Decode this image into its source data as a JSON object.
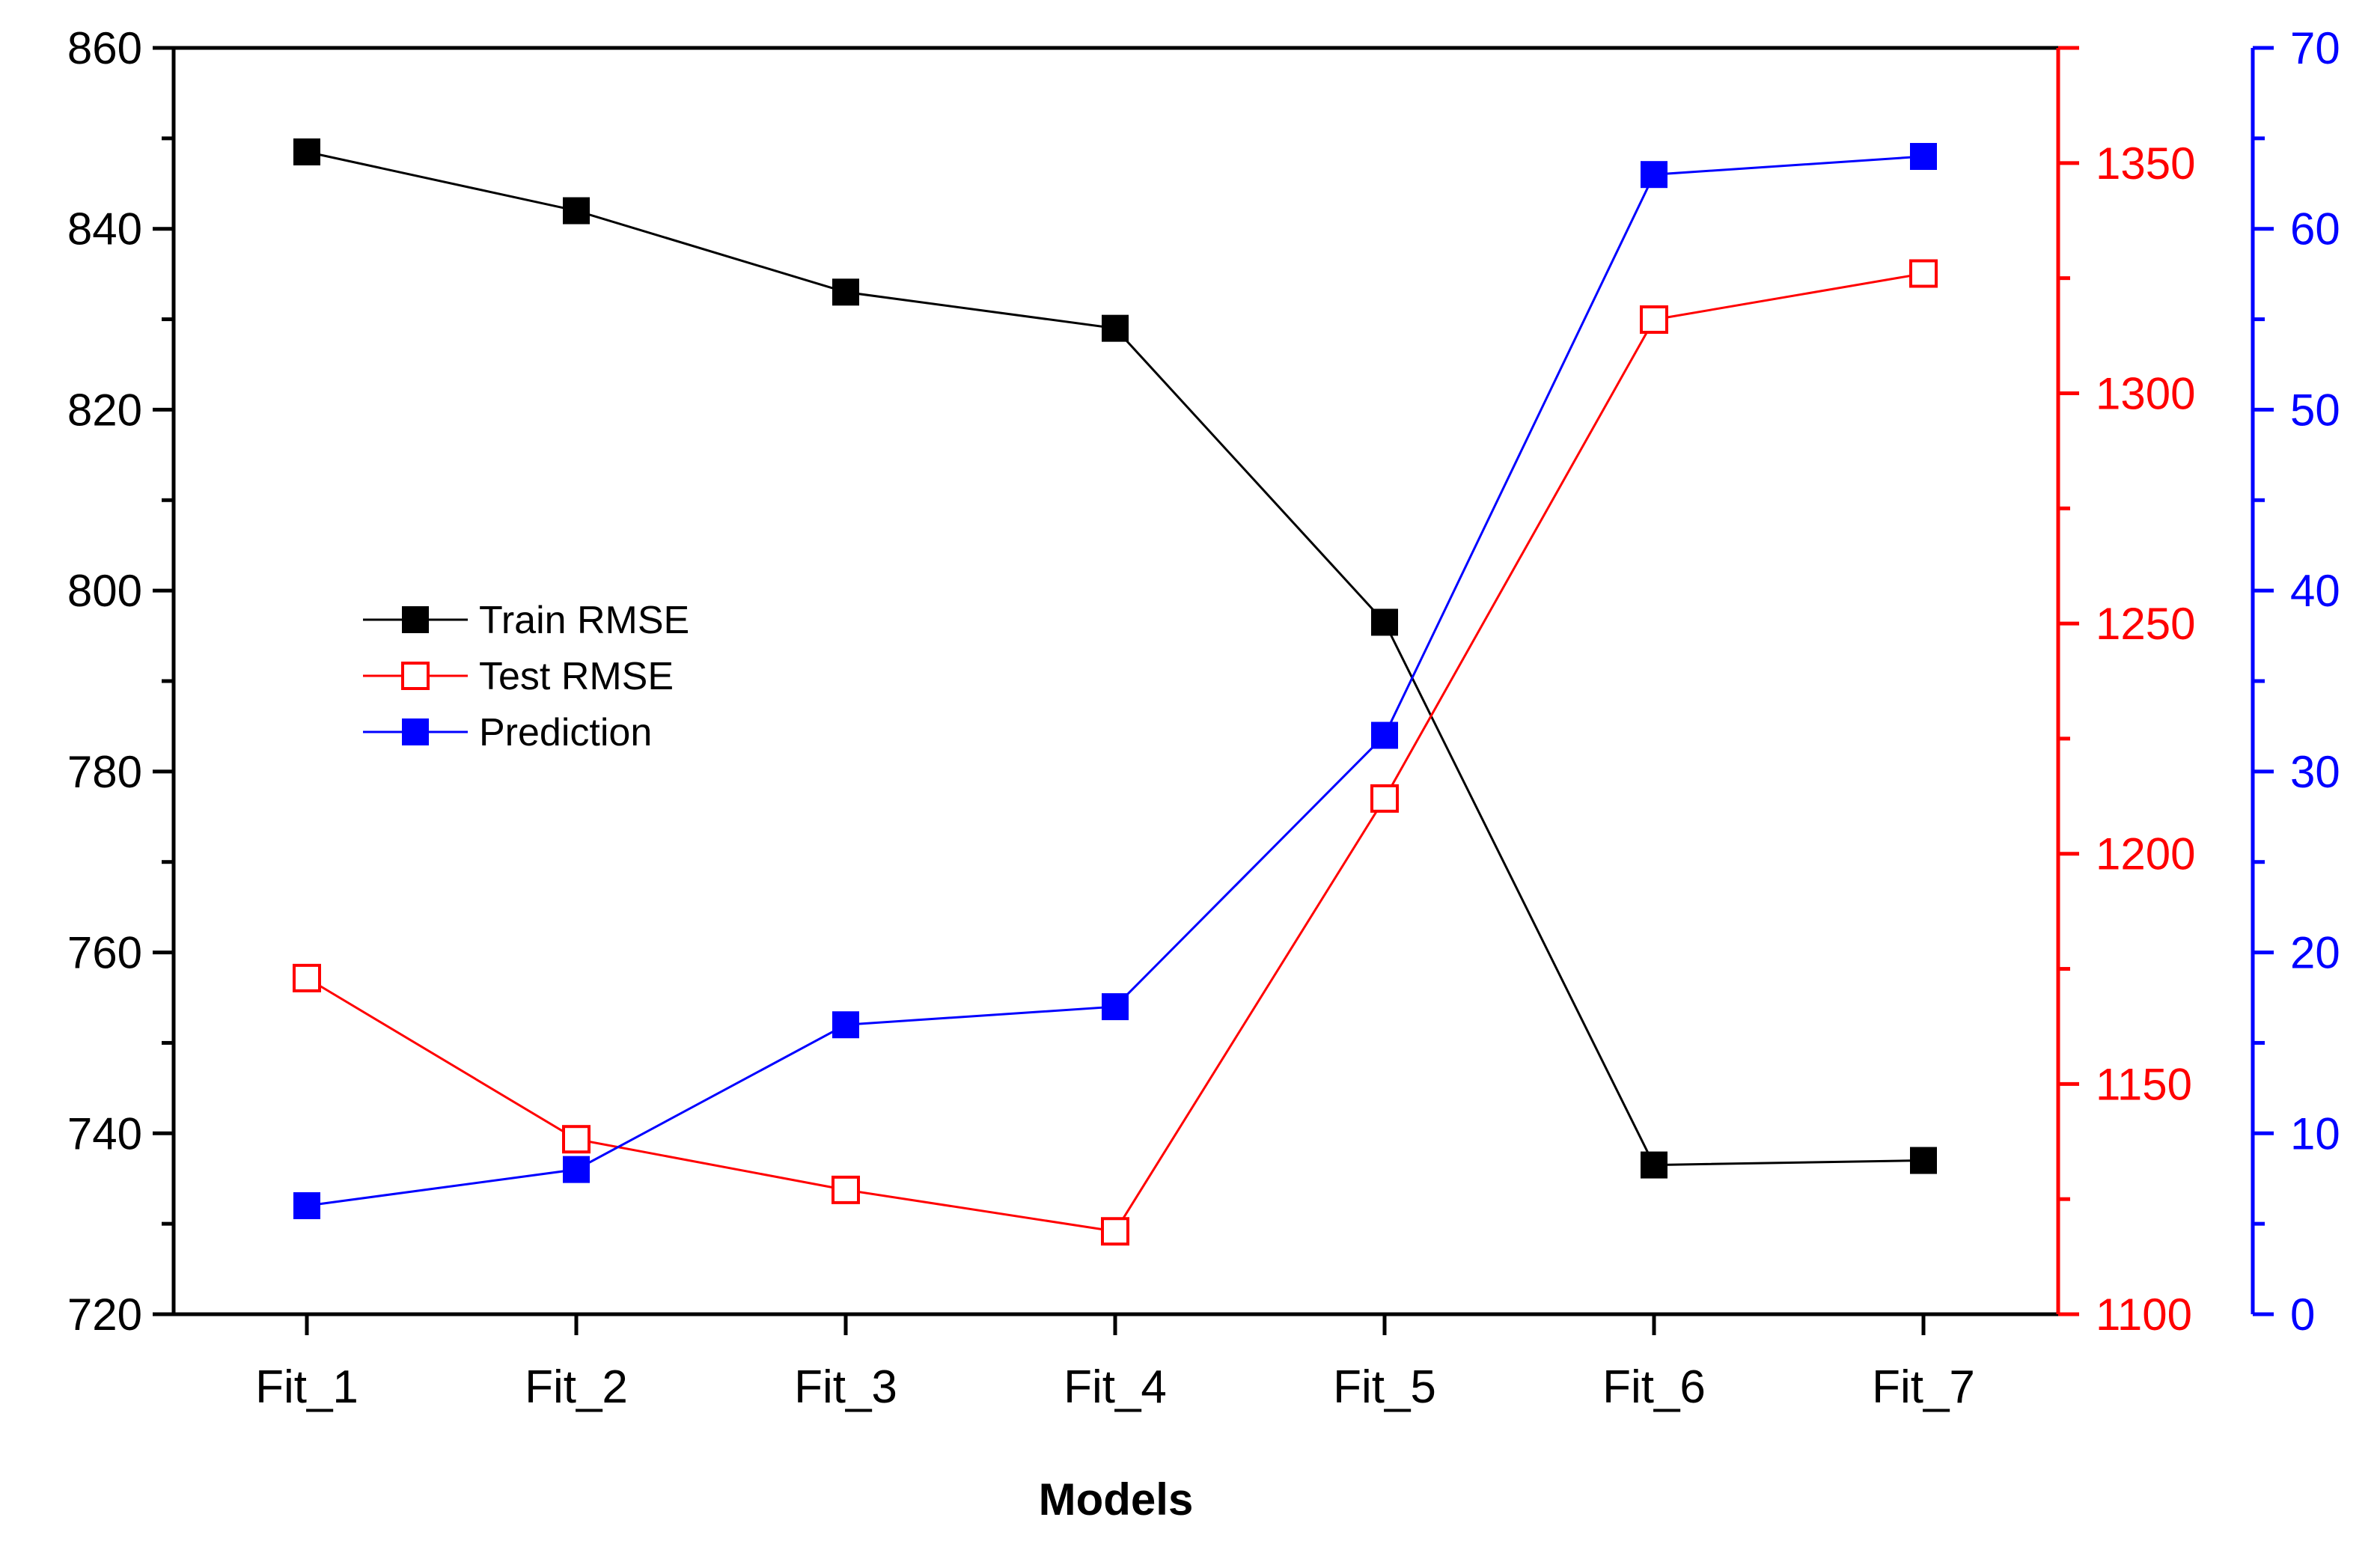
{
  "chart_data": {
    "type": "line",
    "categories": [
      "Fit_1",
      "Fit_2",
      "Fit_3",
      "Fit_4",
      "Fit_5",
      "Fit_6",
      "Fit_7"
    ],
    "xlabel": "Models",
    "series": [
      {
        "name": "Train RMSE",
        "axis": "left",
        "color": "#000000",
        "marker": "filled-square",
        "values": [
          848.5,
          842,
          833,
          829,
          796.5,
          736.5,
          737
        ]
      },
      {
        "name": "Test RMSE",
        "axis": "right1",
        "color": "#ff0000",
        "marker": "open-square",
        "values": [
          1173,
          1138,
          1127,
          1118,
          1212,
          1316,
          1326
        ]
      },
      {
        "name": "Prediction",
        "axis": "right2",
        "color": "#0000ff",
        "marker": "filled-square",
        "values": [
          6,
          8,
          16,
          17,
          32,
          63,
          64
        ]
      }
    ],
    "axes": {
      "left": {
        "color": "#000000",
        "ylim": [
          720,
          860
        ],
        "ticks": [
          720,
          740,
          760,
          780,
          800,
          820,
          840,
          860
        ],
        "tick_labels": [
          "720",
          "740",
          "760",
          "780",
          "800",
          "820",
          "840",
          "860"
        ]
      },
      "right1": {
        "color": "#ff0000",
        "ylim": [
          1100,
          1375
        ],
        "ticks": [
          1100,
          1150,
          1200,
          1250,
          1300,
          1350
        ],
        "tick_labels": [
          "1100",
          "1150",
          "1200",
          "1250",
          "1300",
          "1350"
        ]
      },
      "right2": {
        "color": "#0000ff",
        "ylim": [
          0,
          70
        ],
        "ticks": [
          0,
          10,
          20,
          30,
          40,
          50,
          60,
          70
        ],
        "tick_labels": [
          "0",
          "10",
          "20",
          "30",
          "40",
          "50",
          "60",
          "70"
        ]
      }
    },
    "legend": {
      "position": "center-left",
      "entries": [
        "Train RMSE",
        "Test RMSE",
        "Prediction"
      ]
    }
  }
}
